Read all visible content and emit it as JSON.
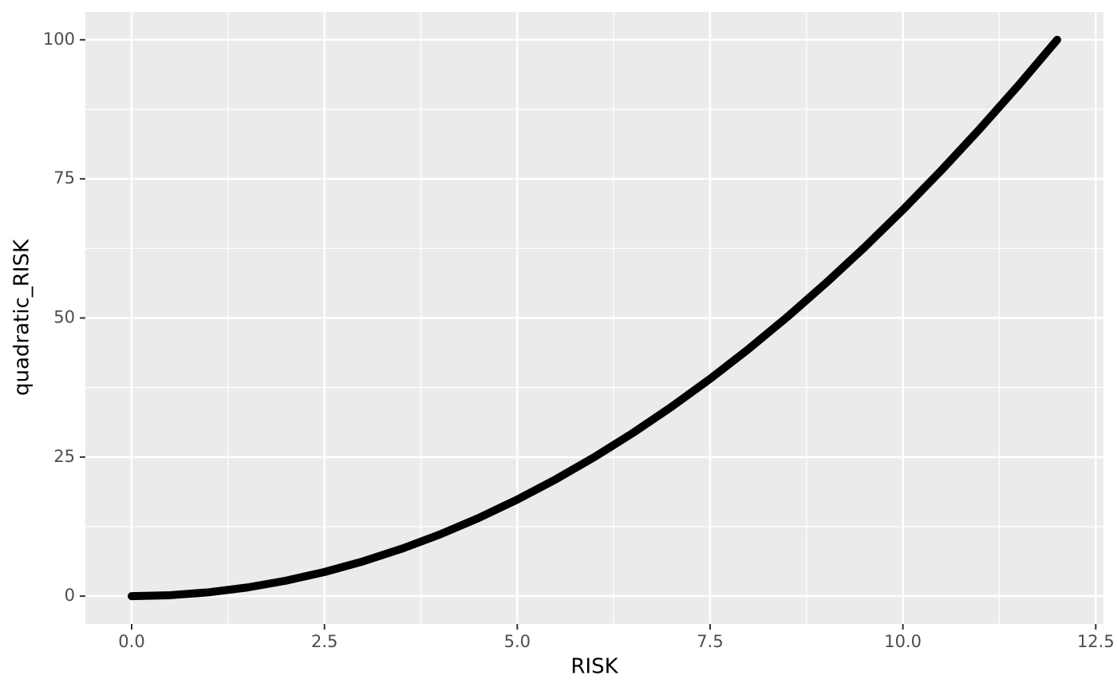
{
  "chart_data": {
    "type": "line",
    "x_label": "RISK",
    "y_label": "quadratic_RISK",
    "x": [
      0,
      0.5,
      1,
      1.5,
      2,
      2.5,
      3,
      3.5,
      4,
      4.5,
      5,
      5.5,
      6,
      6.5,
      7,
      7.5,
      8,
      8.5,
      9,
      9.5,
      10,
      10.5,
      11,
      11.5,
      12
    ],
    "values": [
      0,
      0.17,
      0.69,
      1.56,
      2.78,
      4.34,
      6.25,
      8.51,
      11.11,
      14.06,
      17.36,
      21.01,
      25,
      29.34,
      34.03,
      39.06,
      44.44,
      50.17,
      56.25,
      62.67,
      69.44,
      76.56,
      84.03,
      91.84,
      100
    ],
    "color": "#000000",
    "xlim": [
      -0.6,
      12.6
    ],
    "xticks": [
      {
        "value": 0,
        "label": "0.0"
      },
      2.5,
      {
        "value": 5,
        "label": "5.0"
      },
      7.5,
      {
        "value": 10,
        "label": "10.0"
      },
      12.5
    ],
    "ylim": [
      -5,
      105
    ],
    "yticks": [
      0,
      25,
      50,
      75,
      100
    ],
    "grid": true
  }
}
